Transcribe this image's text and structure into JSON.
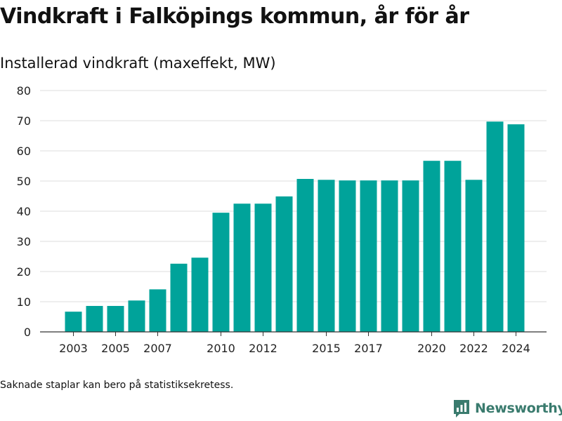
{
  "title": "Vindkraft i Falköpings kommun, år för år",
  "subtitle": "Installerad vindkraft (maxeffekt, MW)",
  "footnote": "Saknade staplar kan bero på statistiksekretess.",
  "brand": {
    "name": "Newsworthy",
    "icon": "newsworthy-logo-icon",
    "color": "#3a7b6e"
  },
  "chart_data": {
    "type": "bar",
    "categories": [
      "2003",
      "2004",
      "2005",
      "2006",
      "2007",
      "2008",
      "2009",
      "2010",
      "2011",
      "2012",
      "2013",
      "2014",
      "2015",
      "2016",
      "2017",
      "2018",
      "2019",
      "2020",
      "2021",
      "2022",
      "2023",
      "2024"
    ],
    "values": [
      6.7,
      8.6,
      8.6,
      10.4,
      14.1,
      22.6,
      24.6,
      39.5,
      42.5,
      42.5,
      44.9,
      50.7,
      50.4,
      50.2,
      50.2,
      50.2,
      50.2,
      56.7,
      56.7,
      50.4,
      69.7,
      68.8
    ],
    "x_tick_labels": [
      "2003",
      "2005",
      "2007",
      "2010",
      "2012",
      "2015",
      "2017",
      "2020",
      "2022",
      "2024"
    ],
    "ylim": [
      0,
      80
    ],
    "y_ticks": [
      0,
      10,
      20,
      30,
      40,
      50,
      60,
      70,
      80
    ],
    "xlabel": "",
    "ylabel": "",
    "grid": true,
    "bar_color": "#00a39a"
  }
}
